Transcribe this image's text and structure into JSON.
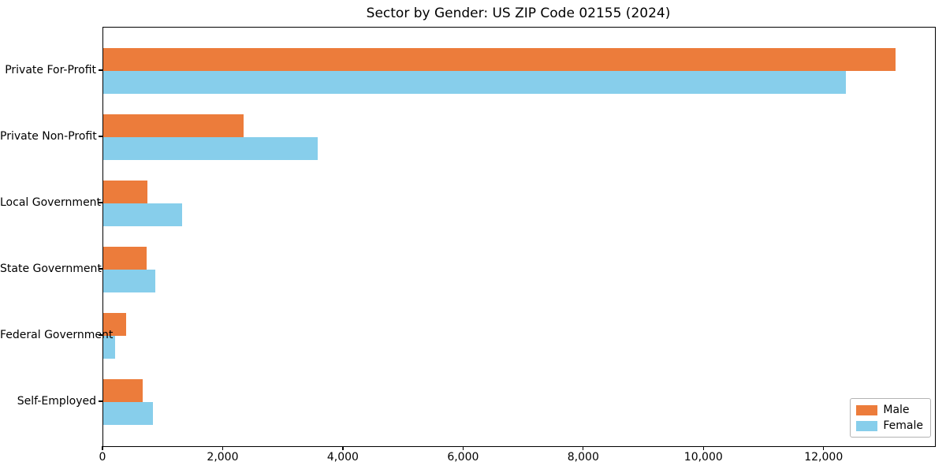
{
  "chart_data": {
    "type": "bar",
    "orientation": "horizontal",
    "title": "Sector by Gender: US ZIP Code 02155 (2024)",
    "categories": [
      "Private For-Profit",
      "Private Non-Profit",
      "Local Government",
      "State Government",
      "Federal Government",
      "Self-Employed"
    ],
    "series": [
      {
        "name": "Male",
        "color": "#ec7c3b",
        "values": [
          13180,
          2340,
          740,
          715,
          375,
          655
        ]
      },
      {
        "name": "Female",
        "color": "#87ceeb",
        "values": [
          12360,
          3570,
          1310,
          865,
          190,
          830
        ]
      }
    ],
    "xlim": [
      0,
      13840
    ],
    "xticks": [
      {
        "value": 0,
        "label": "0"
      },
      {
        "value": 2000,
        "label": "2,000"
      },
      {
        "value": 4000,
        "label": "4,000"
      },
      {
        "value": 6000,
        "label": "6,000"
      },
      {
        "value": 8000,
        "label": "8,000"
      },
      {
        "value": 10000,
        "label": "10,000"
      },
      {
        "value": 12000,
        "label": "12,000"
      }
    ],
    "xlabel": "",
    "ylabel": "",
    "grid": false,
    "legend_position": "lower right"
  }
}
